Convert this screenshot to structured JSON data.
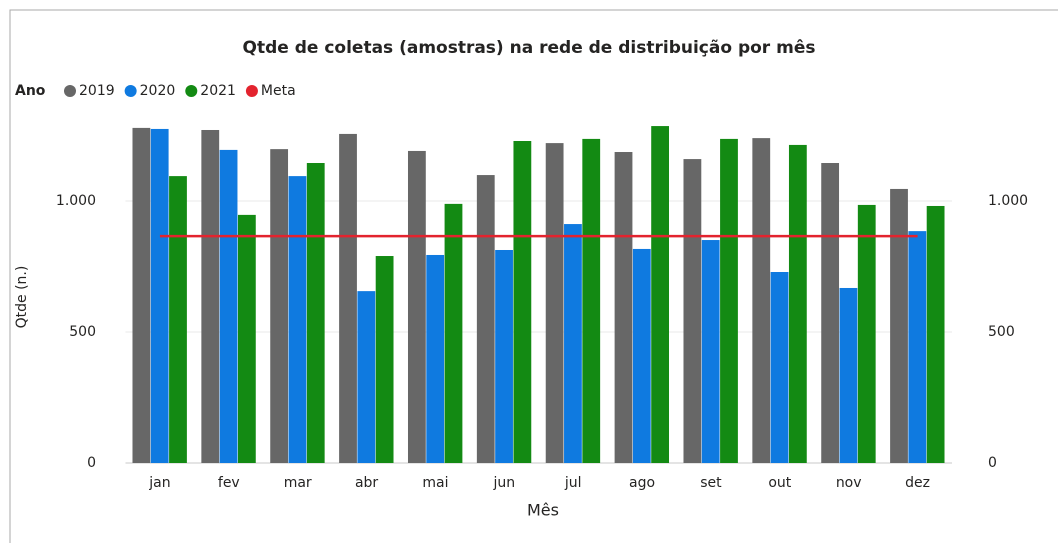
{
  "chart_data": {
    "type": "bar",
    "title": "Qtde de coletas (amostras) na rede de distribuição por mês",
    "legend_title": "Ano",
    "x_label": "Mês",
    "y_label": "Qtde (n.)",
    "categories": [
      "jan",
      "fev",
      "mar",
      "abr",
      "mai",
      "jun",
      "jul",
      "ago",
      "set",
      "out",
      "nov",
      "dez"
    ],
    "series": [
      {
        "name": "2019",
        "type": "bar",
        "color": "#676767",
        "values": [
          1279,
          1271,
          1198,
          1256,
          1191,
          1099,
          1221,
          1187,
          1160,
          1240,
          1145,
          1046
        ]
      },
      {
        "name": "2020",
        "type": "bar",
        "color": "#0f7ae0",
        "values": [
          1275,
          1195,
          1095,
          656,
          794,
          813,
          912,
          817,
          851,
          729,
          668,
          885
        ]
      },
      {
        "name": "2021",
        "type": "bar",
        "color": "#138a13",
        "values": [
          1095,
          947,
          1145,
          790,
          989,
          1229,
          1237,
          1286,
          1237,
          1214,
          985,
          981
        ]
      },
      {
        "name": "Meta",
        "type": "line",
        "color": "#e3232e",
        "values": [
          866,
          866,
          866,
          866,
          866,
          866,
          866,
          866,
          866,
          866,
          866,
          866
        ]
      }
    ],
    "ylim": [
      0,
      1350
    ],
    "yticks": [
      0,
      500,
      {
        "value": 1000,
        "label": "1.000"
      }
    ],
    "y2lim": [
      0,
      1350
    ],
    "y2ticks": [
      0,
      500,
      {
        "value": 1000,
        "label": "1.000"
      }
    ],
    "grid": true
  }
}
